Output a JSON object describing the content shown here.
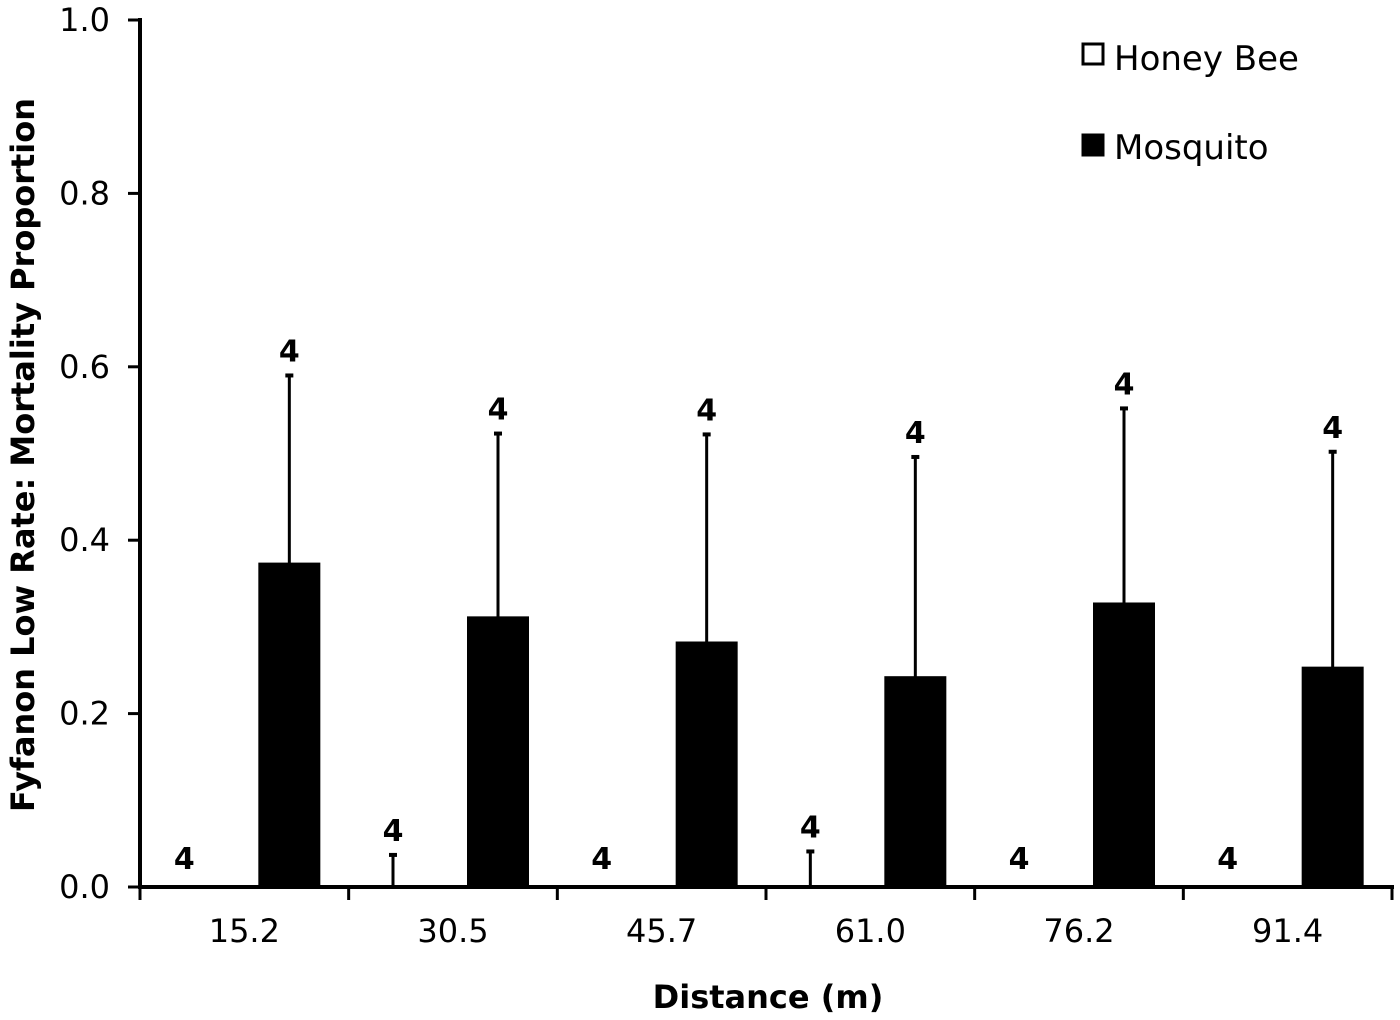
{
  "chart_data": {
    "type": "bar",
    "title": "",
    "xlabel": "Distance (m)",
    "ylabel": "Fyfanon Low Rate: Mortality Proportion",
    "categories": [
      "15.2",
      "30.5",
      "45.7",
      "61.0",
      "76.2",
      "91.4"
    ],
    "ylim": [
      0,
      1.0
    ],
    "yticks": [
      "0.0",
      "0.2",
      "0.4",
      "0.6",
      "0.8",
      "1.0"
    ],
    "grid": false,
    "legend_position": "top-right",
    "series": [
      {
        "name": "Honey Bee",
        "fill": "#ffffff",
        "values": [
          0,
          0,
          0,
          0,
          0,
          0
        ],
        "error": [
          0,
          0.037,
          0,
          0.041,
          0,
          0
        ],
        "n": [
          "4",
          "4",
          "4",
          "4",
          "4",
          "4"
        ]
      },
      {
        "name": "Mosquito",
        "fill": "#000000",
        "values": [
          0.373,
          0.311,
          0.282,
          0.242,
          0.327,
          0.253
        ],
        "error": [
          0.217,
          0.212,
          0.24,
          0.254,
          0.225,
          0.249
        ],
        "n": [
          "4",
          "4",
          "4",
          "4",
          "4",
          "4"
        ]
      }
    ]
  }
}
